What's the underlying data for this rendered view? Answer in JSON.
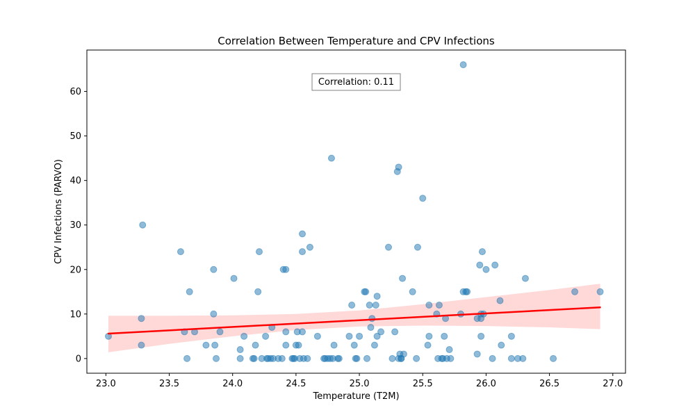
{
  "chart_data": {
    "type": "scatter",
    "title": "Correlation Between Temperature and CPV Infections",
    "xlabel": "Temperature (T2M)",
    "ylabel": "CPV Infections (PARVO)",
    "xlim": [
      22.85,
      27.1
    ],
    "ylim": [
      -3.3,
      69.3
    ],
    "xticks": [
      23.0,
      23.5,
      24.0,
      24.5,
      25.0,
      25.5,
      26.0,
      26.5,
      27.0
    ],
    "xtick_labels": [
      "23.0",
      "23.5",
      "24.0",
      "24.5",
      "25.0",
      "25.5",
      "26.0",
      "26.5",
      "27.0"
    ],
    "yticks": [
      0,
      10,
      20,
      30,
      40,
      50,
      60
    ],
    "ytick_labels": [
      "0",
      "10",
      "20",
      "30",
      "40",
      "50",
      "60"
    ],
    "grid": false,
    "annotation": "Correlation: 0.11",
    "annotation_position": "top-center",
    "colors": {
      "points": "#1f77b4",
      "fit_line": "#ff0000",
      "confidence_band": "#ff9999"
    },
    "points": [
      [
        23.02,
        5
      ],
      [
        23.28,
        9
      ],
      [
        23.28,
        3
      ],
      [
        23.29,
        30
      ],
      [
        23.59,
        24
      ],
      [
        23.62,
        6
      ],
      [
        23.64,
        0
      ],
      [
        23.66,
        15
      ],
      [
        23.7,
        6
      ],
      [
        23.79,
        3
      ],
      [
        23.85,
        20
      ],
      [
        23.85,
        10
      ],
      [
        23.86,
        3
      ],
      [
        23.87,
        0
      ],
      [
        23.9,
        6
      ],
      [
        24.01,
        18
      ],
      [
        24.06,
        2
      ],
      [
        24.06,
        0
      ],
      [
        24.09,
        5
      ],
      [
        24.16,
        0
      ],
      [
        24.17,
        0
      ],
      [
        24.18,
        3
      ],
      [
        24.2,
        15
      ],
      [
        24.21,
        24
      ],
      [
        24.23,
        0
      ],
      [
        24.26,
        5
      ],
      [
        24.27,
        0
      ],
      [
        24.28,
        0
      ],
      [
        24.3,
        0
      ],
      [
        24.31,
        7
      ],
      [
        24.32,
        0
      ],
      [
        24.36,
        0
      ],
      [
        24.39,
        0
      ],
      [
        24.4,
        20
      ],
      [
        24.42,
        20
      ],
      [
        24.42,
        6
      ],
      [
        24.42,
        3
      ],
      [
        24.47,
        0
      ],
      [
        24.48,
        0
      ],
      [
        24.49,
        0
      ],
      [
        24.5,
        3
      ],
      [
        24.51,
        6
      ],
      [
        24.52,
        3
      ],
      [
        24.53,
        0
      ],
      [
        24.55,
        28
      ],
      [
        24.55,
        24
      ],
      [
        24.55,
        6
      ],
      [
        24.56,
        0
      ],
      [
        24.59,
        0
      ],
      [
        24.61,
        25
      ],
      [
        24.67,
        5
      ],
      [
        24.72,
        0
      ],
      [
        24.73,
        0
      ],
      [
        24.75,
        0
      ],
      [
        24.77,
        0
      ],
      [
        24.78,
        45
      ],
      [
        24.79,
        0
      ],
      [
        24.8,
        3
      ],
      [
        24.83,
        0
      ],
      [
        24.84,
        0
      ],
      [
        24.92,
        5
      ],
      [
        24.94,
        12
      ],
      [
        24.96,
        3
      ],
      [
        24.97,
        0
      ],
      [
        24.98,
        0
      ],
      [
        25.0,
        5
      ],
      [
        25.04,
        15
      ],
      [
        25.05,
        15
      ],
      [
        25.06,
        0
      ],
      [
        25.08,
        12
      ],
      [
        25.09,
        7
      ],
      [
        25.1,
        9
      ],
      [
        25.12,
        3
      ],
      [
        25.13,
        12
      ],
      [
        25.14,
        14
      ],
      [
        25.14,
        5
      ],
      [
        25.17,
        6
      ],
      [
        25.23,
        25
      ],
      [
        25.26,
        0
      ],
      [
        25.28,
        6
      ],
      [
        25.3,
        42
      ],
      [
        25.31,
        0
      ],
      [
        25.31,
        43
      ],
      [
        25.32,
        1
      ],
      [
        25.33,
        0
      ],
      [
        25.33,
        0
      ],
      [
        25.34,
        18
      ],
      [
        25.35,
        1
      ],
      [
        25.42,
        15
      ],
      [
        25.45,
        0
      ],
      [
        25.46,
        25
      ],
      [
        25.5,
        36
      ],
      [
        25.54,
        3
      ],
      [
        25.55,
        5
      ],
      [
        25.55,
        12
      ],
      [
        25.61,
        10
      ],
      [
        25.62,
        0
      ],
      [
        25.63,
        12
      ],
      [
        25.65,
        0
      ],
      [
        25.66,
        0
      ],
      [
        25.67,
        5
      ],
      [
        25.68,
        9
      ],
      [
        25.69,
        0
      ],
      [
        25.71,
        2
      ],
      [
        25.72,
        0
      ],
      [
        25.8,
        10
      ],
      [
        25.82,
        66
      ],
      [
        25.82,
        15
      ],
      [
        25.84,
        15
      ],
      [
        25.85,
        15
      ],
      [
        25.93,
        1
      ],
      [
        25.93,
        9
      ],
      [
        25.95,
        21
      ],
      [
        25.96,
        10
      ],
      [
        25.96,
        5
      ],
      [
        25.96,
        9
      ],
      [
        25.97,
        24
      ],
      [
        25.98,
        10
      ],
      [
        26.0,
        20
      ],
      [
        26.05,
        0
      ],
      [
        26.07,
        21
      ],
      [
        26.11,
        13
      ],
      [
        26.12,
        3
      ],
      [
        26.2,
        0
      ],
      [
        26.2,
        5
      ],
      [
        26.25,
        0
      ],
      [
        26.29,
        0
      ],
      [
        26.31,
        18
      ],
      [
        26.53,
        0
      ],
      [
        26.7,
        15
      ],
      [
        26.9,
        15
      ]
    ],
    "fit_line": {
      "x": [
        23.02,
        26.9
      ],
      "y": [
        5.6,
        11.5
      ]
    },
    "confidence_band": {
      "x": [
        23.02,
        23.5,
        24.0,
        24.5,
        25.0,
        25.5,
        26.0,
        26.5,
        26.9
      ],
      "lower": [
        1.4,
        3.3,
        5.0,
        6.4,
        7.2,
        7.4,
        7.3,
        7.0,
        6.6
      ],
      "upper": [
        9.6,
        9.6,
        9.7,
        10.0,
        10.8,
        12.2,
        13.8,
        15.4,
        16.8
      ]
    }
  }
}
